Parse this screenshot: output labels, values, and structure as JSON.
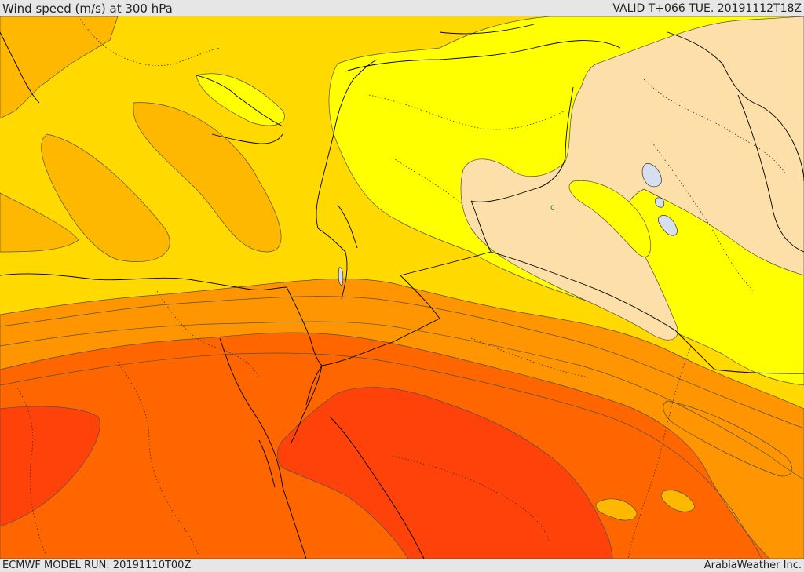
{
  "header": {
    "title": "Wind speed (m/s) at 300 hPa",
    "valid": "VALID T+066 TUE. 20191112T18Z"
  },
  "footer": {
    "run": "ECMWF MODEL RUN: 20191110T00Z",
    "credit": "ArabiaWeather Inc."
  },
  "map": {
    "contour_label": "0",
    "colors": {
      "beige": "#fddfaa",
      "yellow": "#ffff00",
      "light_orange": "#ffd900",
      "orange_yellow": "#ffb800",
      "orange": "#ff9500",
      "dark_orange": "#ff6600",
      "red_orange": "#ff420a",
      "contour_line": "#505050",
      "border_line": "#000000",
      "lake": "#d6dff0"
    }
  }
}
